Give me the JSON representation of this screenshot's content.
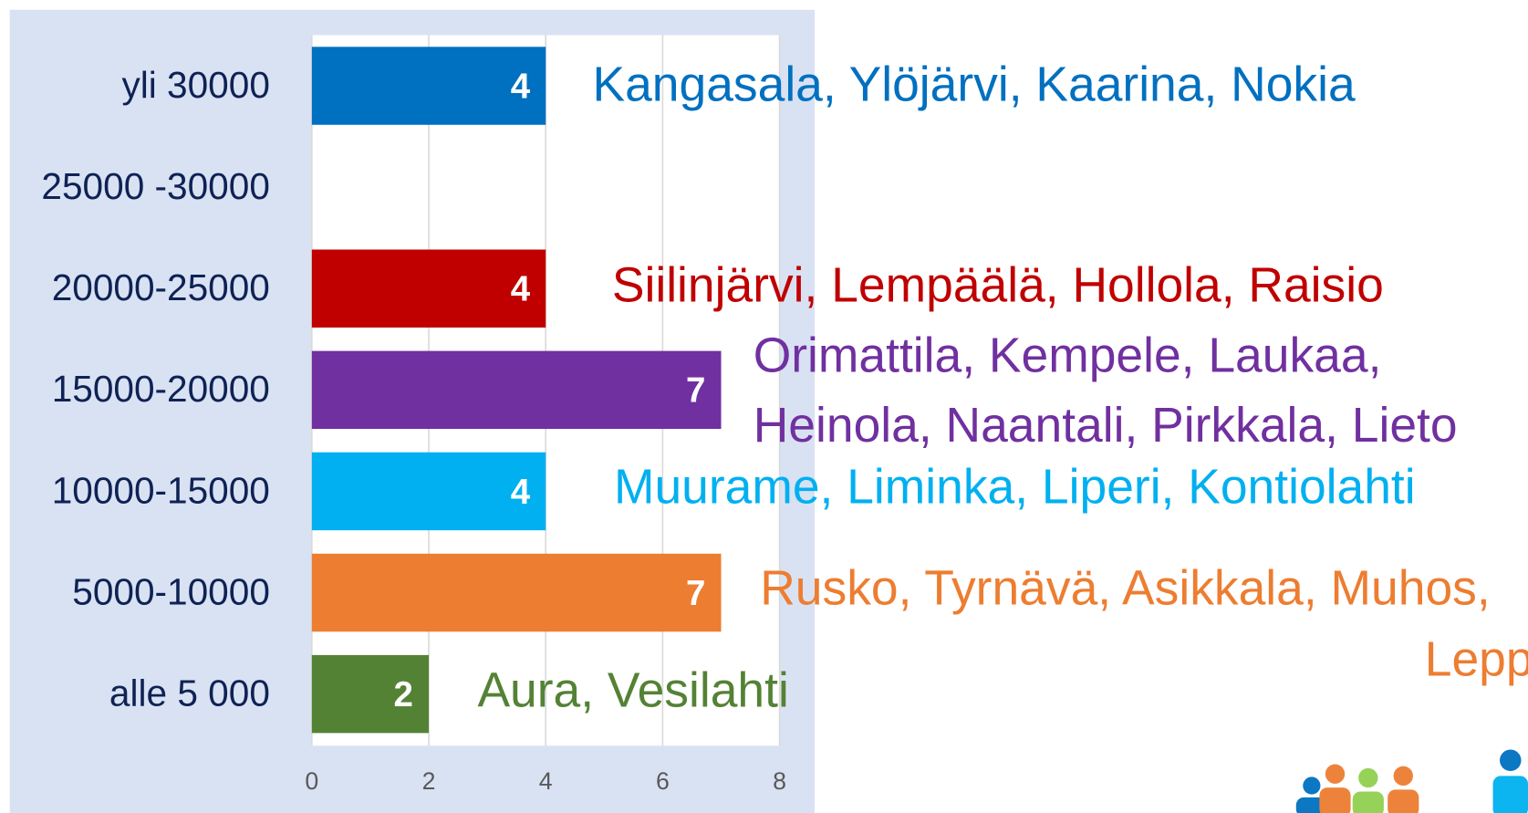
{
  "chart_data": {
    "type": "bar",
    "orientation": "horizontal",
    "categories": [
      "yli 30000",
      "25000 -30000",
      "20000-25000",
      "15000-20000",
      "10000-15000",
      "5000-10000",
      "alle 5 000"
    ],
    "values": [
      4,
      null,
      4,
      7,
      4,
      7,
      2
    ],
    "colors": [
      "#0070c0",
      null,
      "#c00000",
      "#7030a0",
      "#00b0f0",
      "#ed7d31",
      "#548235"
    ],
    "xlim": [
      0,
      8
    ],
    "xticks": [
      0,
      2,
      4,
      6,
      8
    ],
    "grid": true,
    "annotations": [
      {
        "lines": [
          "Kangasala, Ylöjärvi, Kaarina, Nokia"
        ],
        "color": "#0070c0"
      },
      null,
      {
        "lines": [
          "Siilinjärvi, Lempäälä, Hollola, Raisio"
        ],
        "color": "#c00000"
      },
      {
        "lines": [
          "Orimattila, Kempele, Laukaa,",
          "Heinola, Naantali, Pirkkala, Lieto"
        ],
        "color": "#7030a0"
      },
      {
        "lines": [
          "Muurame, Liminka, Liperi, Kontiolahti"
        ],
        "color": "#00b0f0"
      },
      {
        "lines": [
          "Rusko, Tyrnävä, Asikkala, Muhos,",
          "Lepp"
        ],
        "color": "#ed7d31"
      },
      {
        "lines": [
          "Aura, Vesilahti"
        ],
        "color": "#548235"
      }
    ]
  }
}
